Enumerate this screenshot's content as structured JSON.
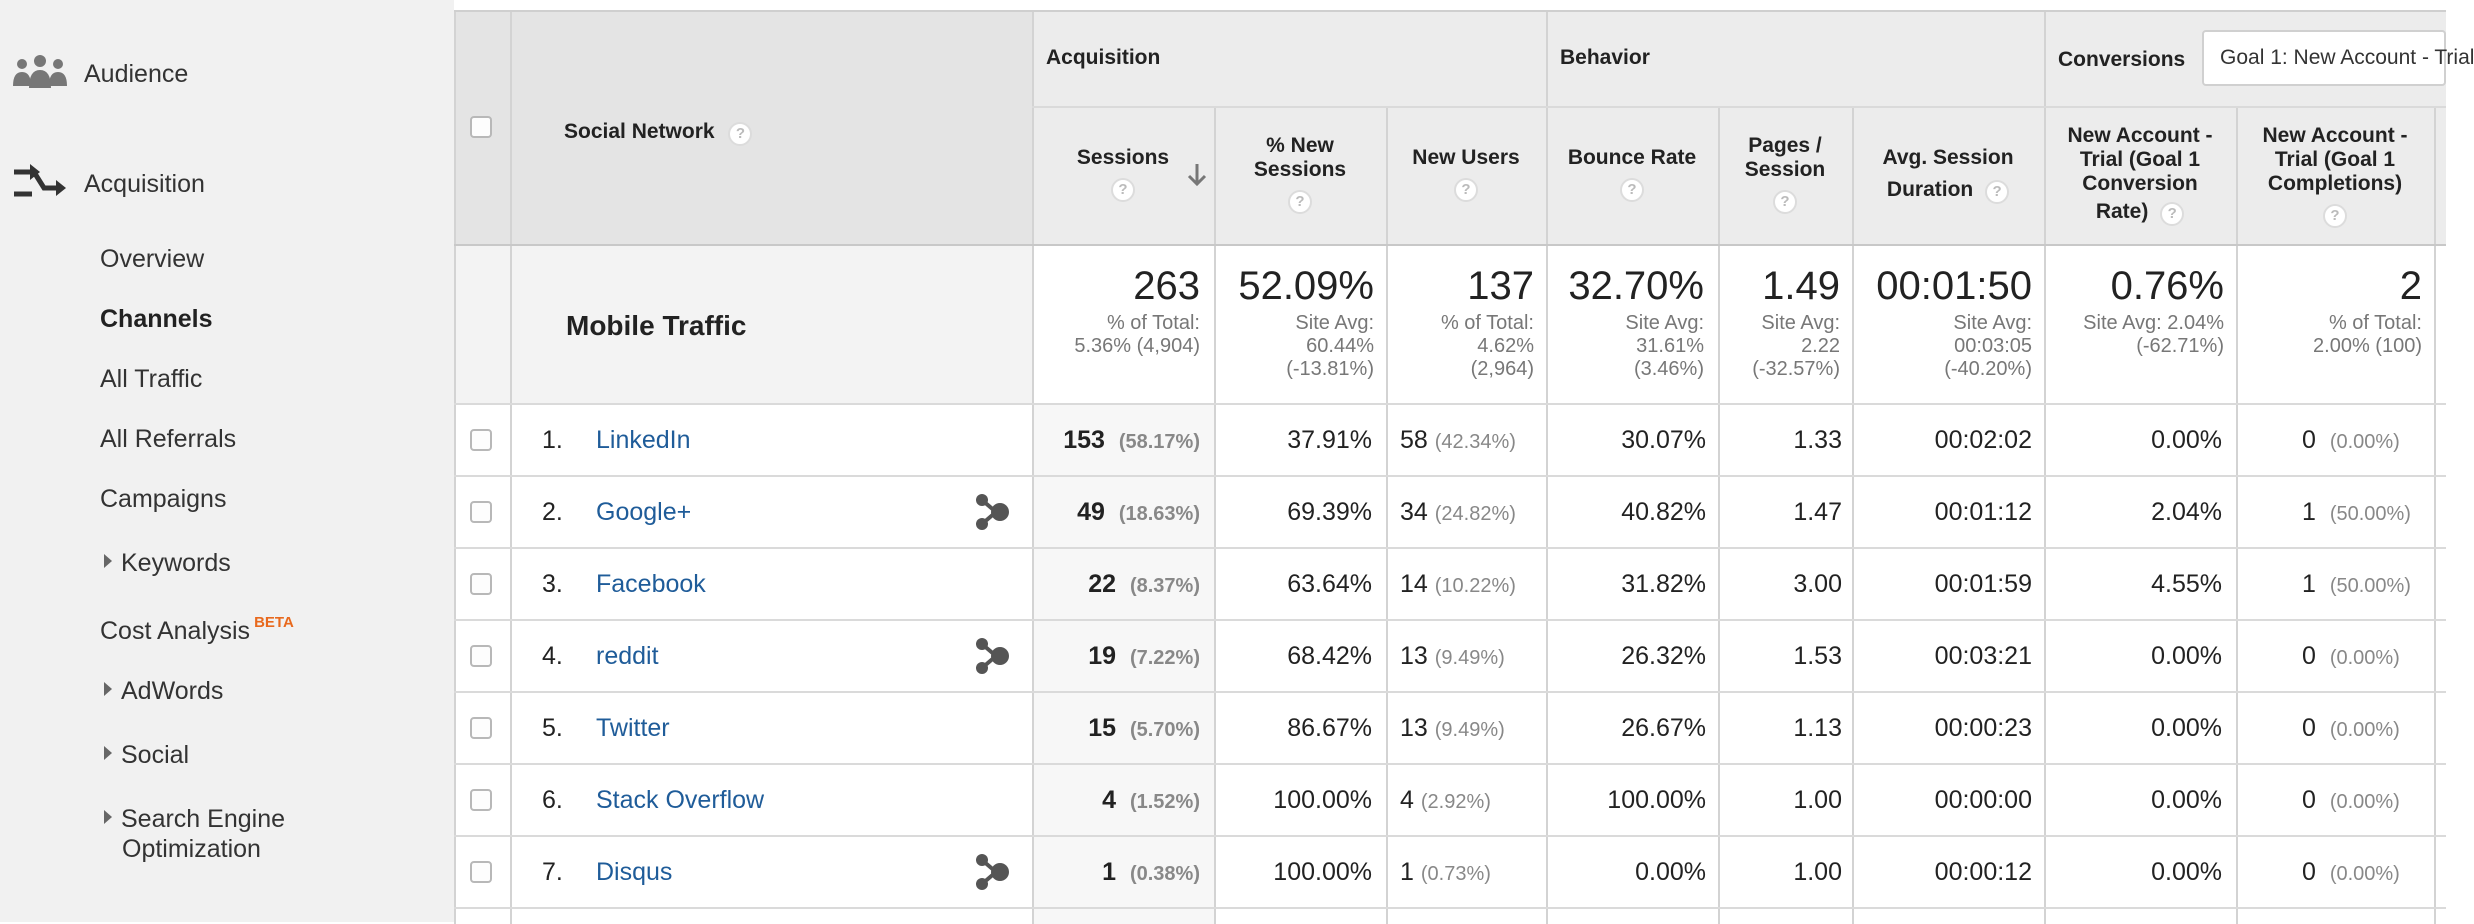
{
  "sidebar": {
    "audience": "Audience",
    "acquisition": "Acquisition",
    "items": [
      "Overview",
      "Channels",
      "All Traffic",
      "All Referrals",
      "Campaigns",
      "Keywords",
      "Cost Analysis",
      "AdWords",
      "Social",
      "Search Engine",
      "Optimization"
    ],
    "beta": "BETA"
  },
  "table": {
    "social_network_label": "Social Network",
    "groups": {
      "acquisition": "Acquisition",
      "behavior": "Behavior",
      "conversions": "Conversions"
    },
    "goal_select": "Goal 1: New Account - Trial",
    "columns": {
      "sessions": "Sessions",
      "new_sessions": [
        "% New",
        "Sessions"
      ],
      "new_users": "New Users",
      "bounce_rate": "Bounce Rate",
      "pages_session": [
        "Pages /",
        "Session"
      ],
      "avg_duration": [
        "Avg. Session",
        "Duration"
      ],
      "conv_rate": [
        "New Account -",
        "Trial (Goal 1",
        "Conversion",
        "Rate)"
      ],
      "completions": [
        "New Account -",
        "Trial (Goal 1",
        "Completions)"
      ]
    },
    "help_glyph": "?",
    "totals": {
      "label": "Mobile Traffic",
      "sessions": "263",
      "sessions_sub": [
        "% of Total:",
        "5.36% (4,904)"
      ],
      "new_sessions": "52.09%",
      "new_sessions_sub": [
        "Site Avg:",
        "60.44%",
        "(-13.81%)"
      ],
      "new_users": "137",
      "new_users_sub": [
        "% of Total:",
        "4.62%",
        "(2,964)"
      ],
      "bounce": "32.70%",
      "bounce_sub": [
        "Site Avg:",
        "31.61%",
        "(3.46%)"
      ],
      "pages": "1.49",
      "pages_sub": [
        "Site Avg:",
        "2.22",
        "(-32.57%)"
      ],
      "duration": "00:01:50",
      "duration_sub": [
        "Site Avg:",
        "00:03:05",
        "(-40.20%)"
      ],
      "conv": "0.76%",
      "conv_sub": [
        "Site Avg: 2.04%",
        "(-62.71%)"
      ],
      "completions": "2",
      "completions_sub": [
        "% of Total:",
        "2.00% (100)"
      ]
    },
    "rows": [
      {
        "n": "1.",
        "name": "LinkedIn",
        "sessions": "153",
        "sessions_pct": "(58.17%)",
        "new_sessions": "37.91%",
        "new_users": "58",
        "new_users_pct": "(42.34%)",
        "bounce": "30.07%",
        "pages": "1.33",
        "duration": "00:02:02",
        "conv": "0.00%",
        "comp": "0",
        "comp_pct": "(0.00%)",
        "hub": false
      },
      {
        "n": "2.",
        "name": "Google+",
        "sessions": "49",
        "sessions_pct": "(18.63%)",
        "new_sessions": "69.39%",
        "new_users": "34",
        "new_users_pct": "(24.82%)",
        "bounce": "40.82%",
        "pages": "1.47",
        "duration": "00:01:12",
        "conv": "2.04%",
        "comp": "1",
        "comp_pct": "(50.00%)",
        "hub": true
      },
      {
        "n": "3.",
        "name": "Facebook",
        "sessions": "22",
        "sessions_pct": "(8.37%)",
        "new_sessions": "63.64%",
        "new_users": "14",
        "new_users_pct": "(10.22%)",
        "bounce": "31.82%",
        "pages": "3.00",
        "duration": "00:01:59",
        "conv": "4.55%",
        "comp": "1",
        "comp_pct": "(50.00%)",
        "hub": false
      },
      {
        "n": "4.",
        "name": "reddit",
        "sessions": "19",
        "sessions_pct": "(7.22%)",
        "new_sessions": "68.42%",
        "new_users": "13",
        "new_users_pct": "(9.49%)",
        "bounce": "26.32%",
        "pages": "1.53",
        "duration": "00:03:21",
        "conv": "0.00%",
        "comp": "0",
        "comp_pct": "(0.00%)",
        "hub": true
      },
      {
        "n": "5.",
        "name": "Twitter",
        "sessions": "15",
        "sessions_pct": "(5.70%)",
        "new_sessions": "86.67%",
        "new_users": "13",
        "new_users_pct": "(9.49%)",
        "bounce": "26.67%",
        "pages": "1.13",
        "duration": "00:00:23",
        "conv": "0.00%",
        "comp": "0",
        "comp_pct": "(0.00%)",
        "hub": false
      },
      {
        "n": "6.",
        "name": "Stack Overflow",
        "sessions": "4",
        "sessions_pct": "(1.52%)",
        "new_sessions": "100.00%",
        "new_users": "4",
        "new_users_pct": "(2.92%)",
        "bounce": "100.00%",
        "pages": "1.00",
        "duration": "00:00:00",
        "conv": "0.00%",
        "comp": "0",
        "comp_pct": "(0.00%)",
        "hub": false
      },
      {
        "n": "7.",
        "name": "Disqus",
        "sessions": "1",
        "sessions_pct": "(0.38%)",
        "new_sessions": "100.00%",
        "new_users": "1",
        "new_users_pct": "(0.73%)",
        "bounce": "0.00%",
        "pages": "1.00",
        "duration": "00:00:12",
        "conv": "0.00%",
        "comp": "0",
        "comp_pct": "(0.00%)",
        "hub": true
      }
    ]
  }
}
